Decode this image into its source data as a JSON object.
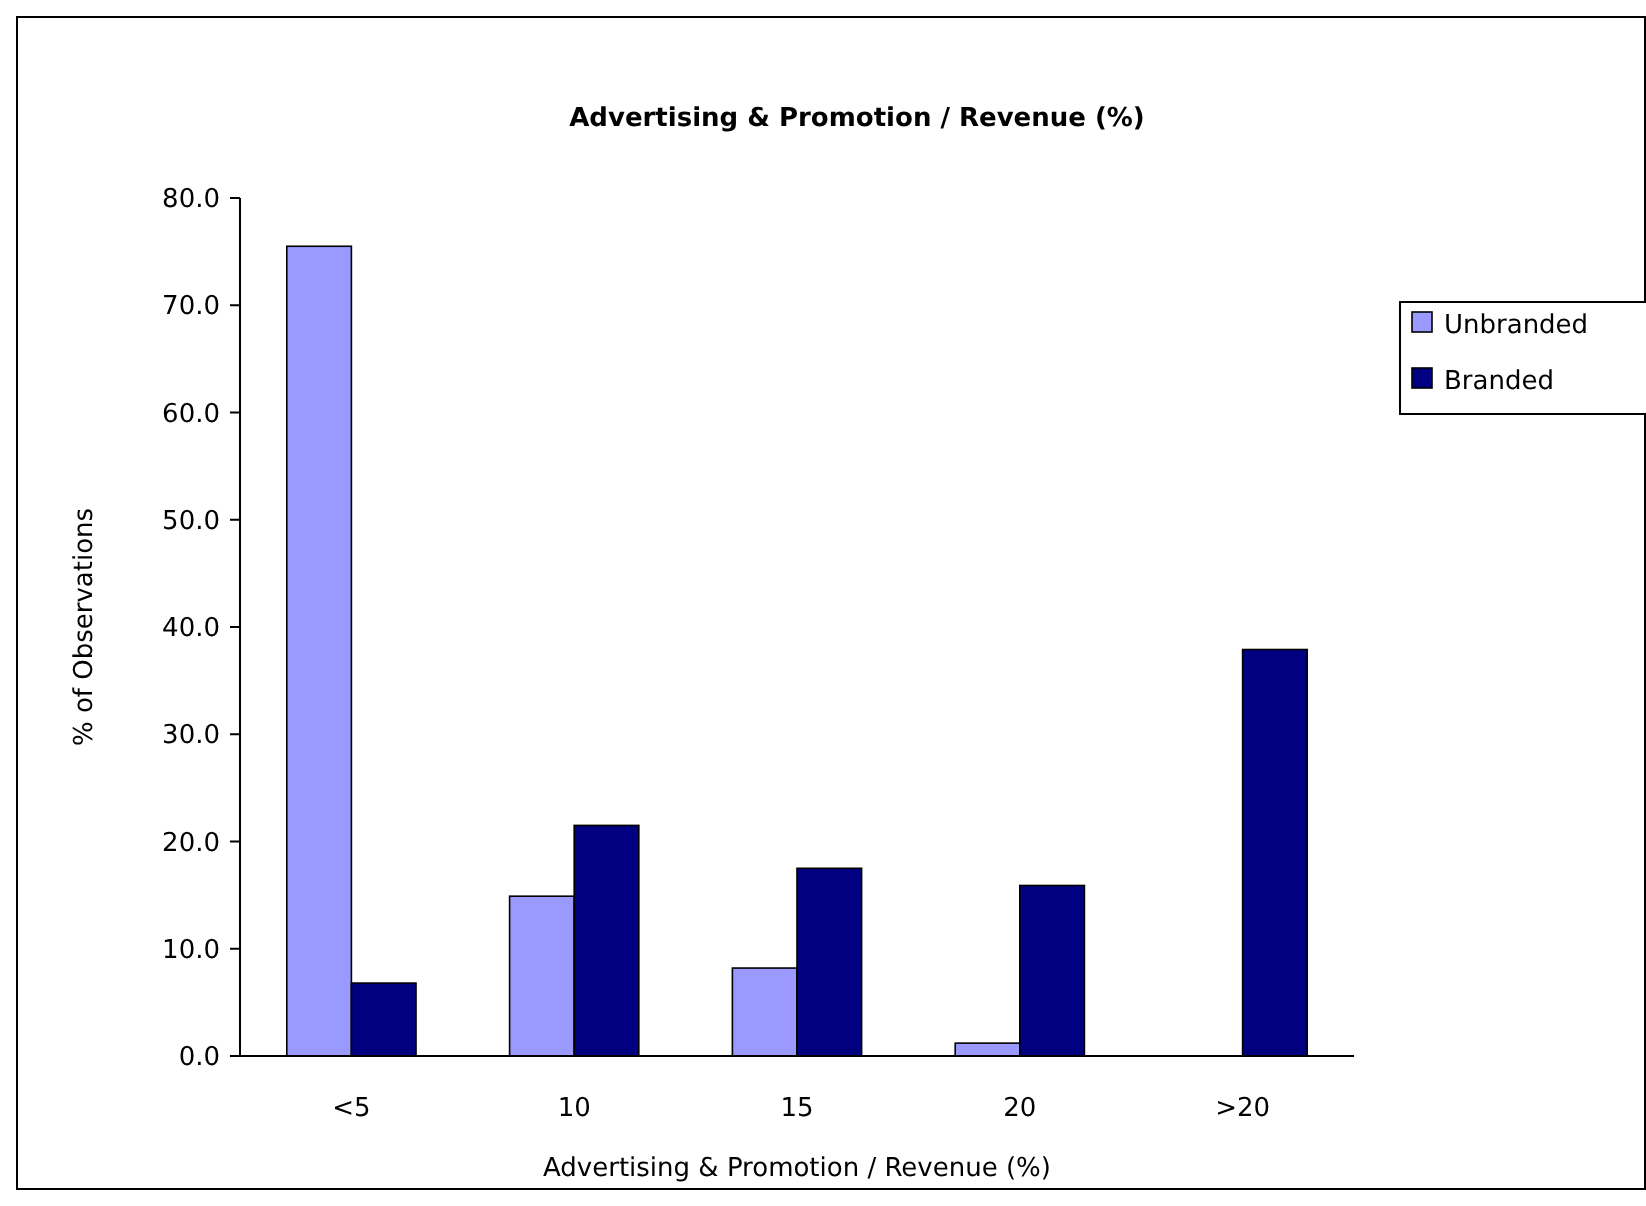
{
  "chart_data": {
    "type": "bar",
    "title": "Advertising & Promotion / Revenue (%)",
    "xlabel": "Advertising & Promotion / Revenue (%)",
    "ylabel": "% of Observations",
    "categories": [
      "<5",
      "10",
      "15",
      "20",
      ">20"
    ],
    "series": [
      {
        "name": "Unbranded",
        "color": "#9999ff",
        "values": [
          75.5,
          14.9,
          8.2,
          1.2,
          0
        ]
      },
      {
        "name": "Branded",
        "color": "#000080",
        "values": [
          6.8,
          21.5,
          17.5,
          15.9,
          37.9
        ]
      }
    ],
    "ylim": [
      0,
      80
    ],
    "yticks": [
      {
        "value": 0,
        "label": "0.0"
      },
      {
        "value": 10,
        "label": "10.0"
      },
      {
        "value": 20,
        "label": "20.0"
      },
      {
        "value": 30,
        "label": "30.0"
      },
      {
        "value": 40,
        "label": "40.0"
      },
      {
        "value": 50,
        "label": "50.0"
      },
      {
        "value": 60,
        "label": "60.0"
      },
      {
        "value": 70,
        "label": "70.0"
      },
      {
        "value": 80,
        "label": "80.0"
      }
    ],
    "grid": false,
    "legend": "right"
  }
}
